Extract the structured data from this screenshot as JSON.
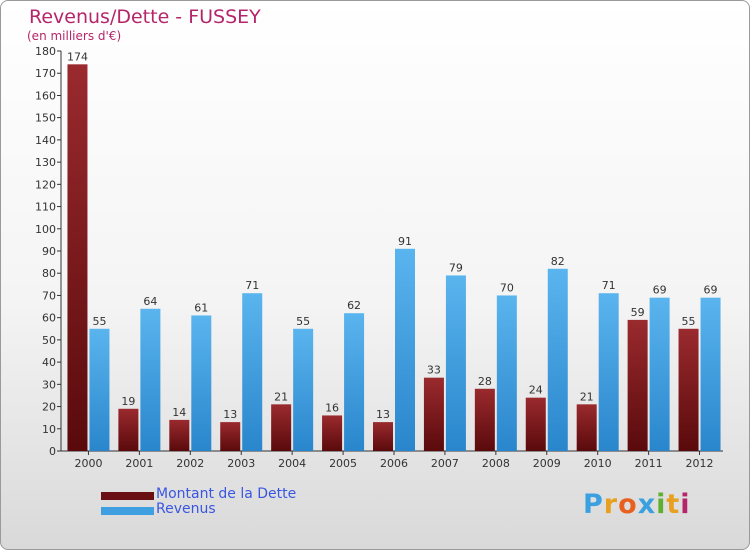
{
  "chart_data": {
    "type": "bar",
    "title": "Revenus/Dette - FUSSEY",
    "subtitle": "(en milliers d'€)",
    "xlabel": "",
    "ylabel": "",
    "ylim": [
      0,
      180
    ],
    "ytick_step": 10,
    "grid": false,
    "legend_position": "bottom-left",
    "categories": [
      "2000",
      "2001",
      "2002",
      "2003",
      "2004",
      "2005",
      "2006",
      "2007",
      "2008",
      "2009",
      "2010",
      "2011",
      "2012"
    ],
    "series": [
      {
        "name": "Montant de la Dette",
        "color": "#7a1518",
        "values": [
          174,
          19,
          14,
          13,
          21,
          16,
          13,
          33,
          28,
          24,
          21,
          59,
          55
        ]
      },
      {
        "name": "Revenus",
        "color": "#3f9fe0",
        "values": [
          55,
          64,
          61,
          71,
          55,
          62,
          91,
          79,
          70,
          82,
          71,
          69,
          69
        ]
      }
    ]
  },
  "logo": {
    "letters": [
      "P",
      "r",
      "o",
      "x",
      "i",
      "t",
      "i"
    ],
    "colors": [
      "#3aa0e0",
      "#e8a020",
      "#e86020",
      "#3aa0e0",
      "#60b030",
      "#e8a020",
      "#b5256a"
    ]
  }
}
